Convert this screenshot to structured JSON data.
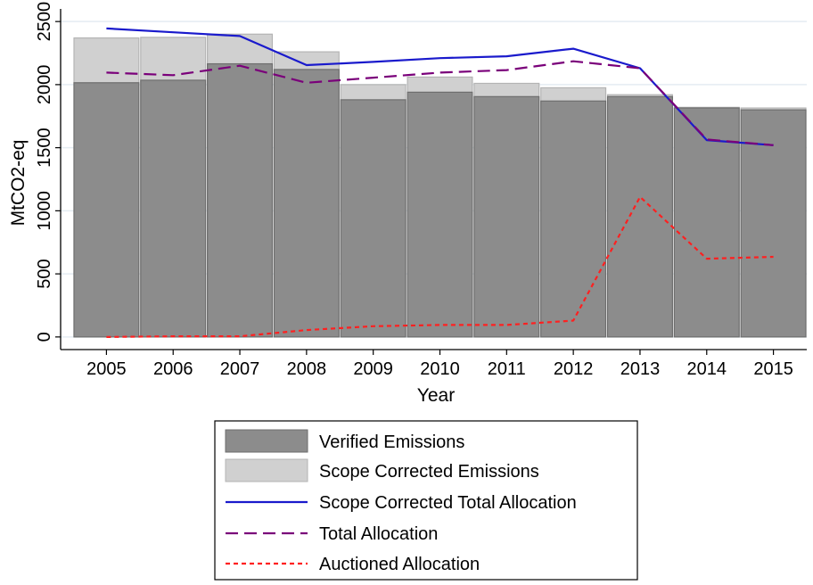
{
  "chart_data": {
    "type": "bar",
    "title": "",
    "xlabel": "Year",
    "ylabel": "MtCO2-eq",
    "ylim": [
      -100,
      2600
    ],
    "yticks": [
      0,
      500,
      1000,
      1500,
      2000,
      2500
    ],
    "grid": true,
    "legend_position": "bottom",
    "categories": [
      "2005",
      "2006",
      "2007",
      "2008",
      "2009",
      "2010",
      "2011",
      "2012",
      "2013",
      "2014",
      "2015"
    ],
    "bar_series": [
      {
        "name": "Scope Corrected Emissions",
        "color": "#d0d0d0",
        "values": [
          2370,
          2375,
          2400,
          2260,
          2000,
          2060,
          2010,
          1975,
          1920,
          1820,
          1815
        ]
      },
      {
        "name": "Verified Emissions",
        "color": "#8c8c8c",
        "values": [
          2015,
          2035,
          2165,
          2120,
          1880,
          1940,
          1905,
          1870,
          1905,
          1815,
          1800
        ]
      }
    ],
    "line_series": [
      {
        "name": "Scope Corrected Total Allocation",
        "color": "#1a1acc",
        "dash": "solid",
        "values": [
          2445,
          2415,
          2385,
          2155,
          2180,
          2210,
          2225,
          2285,
          2130,
          1560,
          1520
        ]
      },
      {
        "name": "Total Allocation",
        "color": "#7a007a",
        "dash": "long",
        "values": [
          2095,
          2075,
          2150,
          2015,
          2055,
          2095,
          2115,
          2185,
          2130,
          1565,
          1520
        ]
      },
      {
        "name": "Auctioned Allocation",
        "color": "#ff2020",
        "dash": "short",
        "values": [
          0,
          5,
          5,
          55,
          85,
          95,
          95,
          130,
          1110,
          620,
          635
        ]
      }
    ],
    "legend": [
      {
        "label": "Verified Emissions",
        "kind": "box",
        "color": "#8c8c8c"
      },
      {
        "label": "Scope Corrected Emissions",
        "kind": "box",
        "color": "#d0d0d0"
      },
      {
        "label": "Scope Corrected Total Allocation",
        "kind": "line",
        "color": "#1a1acc",
        "dash": "solid"
      },
      {
        "label": "Total Allocation",
        "kind": "line",
        "color": "#7a007a",
        "dash": "long"
      },
      {
        "label": "Auctioned Allocation",
        "kind": "line",
        "color": "#ff2020",
        "dash": "short"
      }
    ]
  }
}
